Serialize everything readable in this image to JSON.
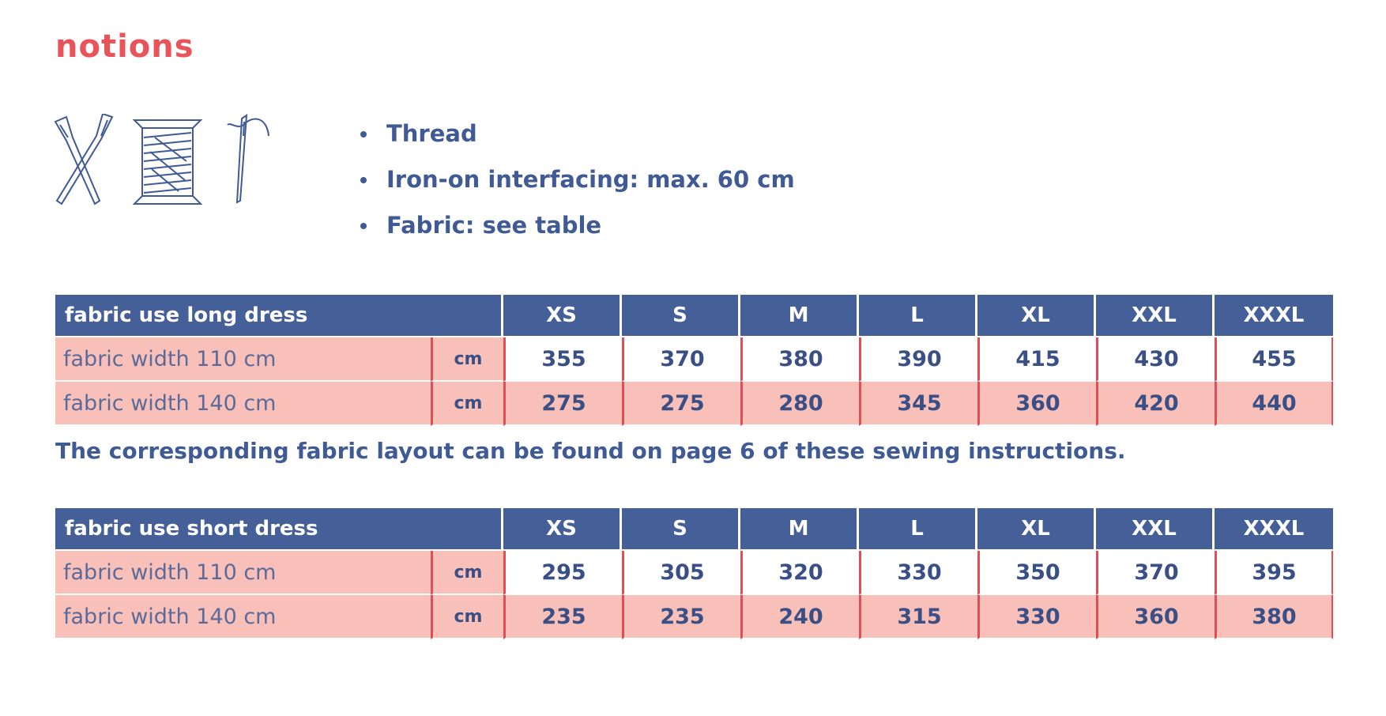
{
  "header": {
    "title": "notions"
  },
  "notions": [
    "Thread",
    "Iron-on interfacing: max. 60 cm",
    "Fabric: see table"
  ],
  "tables": [
    {
      "title": "fabric use long dress",
      "sizes": [
        "XS",
        "S",
        "M",
        "L",
        "XL",
        "XXL",
        "XXXL"
      ],
      "rows": [
        {
          "label": "fabric width 110 cm",
          "unit": "cm",
          "values": [
            355,
            370,
            380,
            390,
            415,
            430,
            455
          ]
        },
        {
          "label": "fabric width 140 cm",
          "unit": "cm",
          "values": [
            275,
            275,
            280,
            345,
            360,
            420,
            440
          ]
        }
      ]
    },
    {
      "title": "fabric use short dress",
      "sizes": [
        "XS",
        "S",
        "M",
        "L",
        "XL",
        "XXL",
        "XXXL"
      ],
      "rows": [
        {
          "label": "fabric width 110 cm",
          "unit": "cm",
          "values": [
            295,
            305,
            320,
            330,
            350,
            370,
            395
          ]
        },
        {
          "label": "fabric width 140 cm",
          "unit": "cm",
          "values": [
            235,
            235,
            240,
            315,
            330,
            360,
            380
          ]
        }
      ]
    }
  ],
  "note": "The corresponding fabric layout can be found on page 6 of these sewing instructions."
}
